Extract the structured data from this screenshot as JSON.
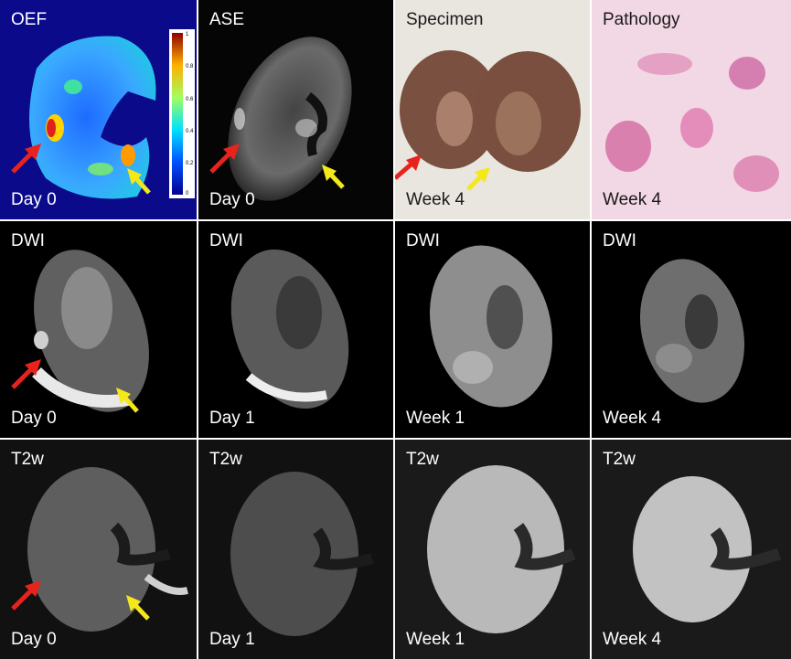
{
  "rows": [
    {
      "panels": [
        {
          "top": "OEF",
          "bottom": "Day 0",
          "kind": "oef",
          "arrows": "both"
        },
        {
          "top": "ASE",
          "bottom": "Day 0",
          "kind": "ase",
          "arrows": "both"
        },
        {
          "top": "Specimen",
          "bottom": "Week 4",
          "kind": "specimen",
          "arrows": "both"
        },
        {
          "top": "Pathology",
          "bottom": "Week 4",
          "kind": "pathology",
          "arrows": "none"
        }
      ]
    },
    {
      "panels": [
        {
          "top": "DWI",
          "bottom": "Day 0",
          "kind": "dwi0",
          "arrows": "both"
        },
        {
          "top": "DWI",
          "bottom": "Day 1",
          "kind": "dwi1",
          "arrows": "none"
        },
        {
          "top": "DWI",
          "bottom": "Week 1",
          "kind": "dwi2",
          "arrows": "none"
        },
        {
          "top": "DWI",
          "bottom": "Week 4",
          "kind": "dwi3",
          "arrows": "none"
        }
      ]
    },
    {
      "panels": [
        {
          "top": "T2w",
          "bottom": "Day 0",
          "kind": "t2a",
          "arrows": "both"
        },
        {
          "top": "T2w",
          "bottom": "Day 1",
          "kind": "t2b",
          "arrows": "none"
        },
        {
          "top": "T2w",
          "bottom": "Week 1",
          "kind": "t2c",
          "arrows": "none"
        },
        {
          "top": "T2w",
          "bottom": "Week 4",
          "kind": "t2d",
          "arrows": "none"
        }
      ]
    }
  ],
  "colorbar": {
    "ticks": [
      "1",
      "0.8",
      "0.6",
      "0.4",
      "0.2",
      "0"
    ]
  },
  "arrow_colors": {
    "red": "#e8231e",
    "yellow": "#f4e81a"
  },
  "colors": {
    "oef_bg": "#0a0a8a"
  }
}
